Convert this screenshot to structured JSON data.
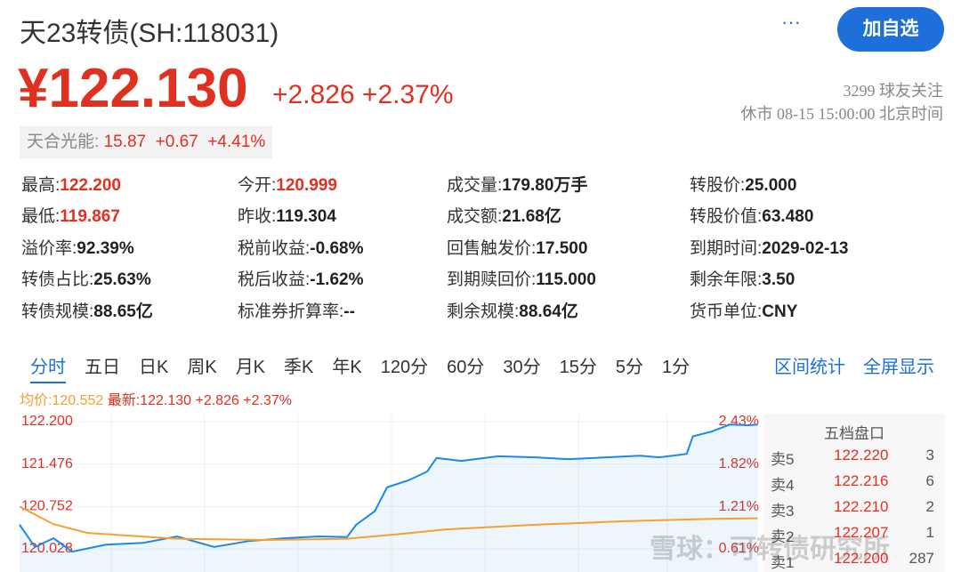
{
  "header": {
    "title": "天23转债(SH:118031)",
    "more": "···",
    "button": "加自选",
    "price": "¥122.130",
    "change": "+2.826 +2.37%",
    "followers": "3299 球友关注",
    "status": "休市 08-15 15:00:00 北京时间"
  },
  "stock": {
    "name": "天合光能:",
    "price": "15.87",
    "change": "+0.67",
    "percent": "+4.41%"
  },
  "stats": [
    [
      {
        "label": "最高:",
        "value": "122.200",
        "color": "#e03020"
      },
      {
        "label": "今开:",
        "value": "120.999",
        "color": "#e03020"
      },
      {
        "label": "成交量:",
        "value": "179.80万手"
      },
      {
        "label": "转股价:",
        "value": "25.000"
      }
    ],
    [
      {
        "label": "最低:",
        "value": "119.867",
        "color": "#e03020"
      },
      {
        "label": "昨收:",
        "value": "119.304"
      },
      {
        "label": "成交额:",
        "value": "21.68亿"
      },
      {
        "label": "转股价值:",
        "value": "63.480"
      }
    ],
    [
      {
        "label": "溢价率:",
        "value": "92.39%"
      },
      {
        "label": "税前收益:",
        "value": "-0.68%"
      },
      {
        "label": "回售触发价:",
        "value": "17.500"
      },
      {
        "label": "到期时间:",
        "value": "2029-02-13"
      }
    ],
    [
      {
        "label": "转债占比:",
        "value": "25.63%"
      },
      {
        "label": "税后收益:",
        "value": "-1.62%"
      },
      {
        "label": "到期赎回价:",
        "value": "115.000"
      },
      {
        "label": "剩余年限:",
        "value": "3.50"
      }
    ],
    [
      {
        "label": "转债规模:",
        "value": "88.65亿"
      },
      {
        "label": "标准券折算率:",
        "value": "--"
      },
      {
        "label": "剩余规模:",
        "value": "88.64亿"
      },
      {
        "label": "货币单位:",
        "value": "CNY"
      }
    ]
  ],
  "tabs": {
    "items": [
      "分时",
      "五日",
      "日K",
      "周K",
      "月K",
      "季K",
      "年K",
      "120分",
      "60分",
      "30分",
      "15分",
      "5分",
      "1分"
    ],
    "active": 0,
    "right": [
      "区间统计",
      "全屏显示"
    ]
  },
  "info": {
    "avg": "均价:120.552",
    "latest": "最新:122.130 +2.826 +2.37%"
  },
  "order_book": {
    "title": "五档盘口",
    "rows": [
      [
        "卖5",
        "122.220",
        3
      ],
      [
        "卖4",
        "122.216",
        6
      ],
      [
        "卖3",
        "122.210",
        2
      ],
      [
        "卖2",
        "122.207",
        1
      ],
      [
        "卖1",
        "122.200",
        287
      ]
    ]
  },
  "watermark": "雪球：可转债研究所",
  "chart_data": {
    "type": "line",
    "xlim": [
      0,
      240
    ],
    "ylim": [
      119.633,
      122.337
    ],
    "yticks": [
      {
        "value": 122.2,
        "label": "122.200"
      },
      {
        "value": 121.476,
        "label": "121.476"
      },
      {
        "value": 120.752,
        "label": "120.752"
      },
      {
        "value": 120.028,
        "label": "120.028"
      }
    ],
    "y2lim": [
      0.276,
      2.542
    ],
    "y2ticks": [
      {
        "value": 2.43,
        "label": "2.43%"
      },
      {
        "value": 1.82,
        "label": "1.82%"
      },
      {
        "value": 1.21,
        "label": "1.21%"
      },
      {
        "value": 0.61,
        "label": "0.61%"
      }
    ],
    "series": [
      {
        "name": "最新",
        "color": "#1e88e5",
        "area": true,
        "x": [
          0,
          5,
          11,
          17,
          28,
          40,
          51,
          63,
          74,
          86,
          97,
          106,
          109,
          115,
          119,
          126,
          132,
          135,
          143,
          155,
          167,
          178,
          190,
          201,
          207,
          216,
          218,
          224,
          230,
          236,
          239
        ],
        "values": [
          120.44,
          120.06,
          120.21,
          119.98,
          120.1,
          120.13,
          120.24,
          120.06,
          120.16,
          120.21,
          120.24,
          120.23,
          120.44,
          120.67,
          121.08,
          121.2,
          121.35,
          121.58,
          121.53,
          121.61,
          121.59,
          121.56,
          121.59,
          121.62,
          121.59,
          121.65,
          121.95,
          122.03,
          122.15,
          122.14,
          122.15
        ]
      },
      {
        "name": "均价",
        "color": "#f5a030",
        "x": [
          0,
          11,
          22,
          51,
          80,
          106,
          123,
          138,
          167,
          196,
          224,
          239
        ],
        "values": [
          120.75,
          120.45,
          120.3,
          120.2,
          120.18,
          120.2,
          120.28,
          120.36,
          120.44,
          120.5,
          120.54,
          120.55
        ]
      }
    ]
  }
}
